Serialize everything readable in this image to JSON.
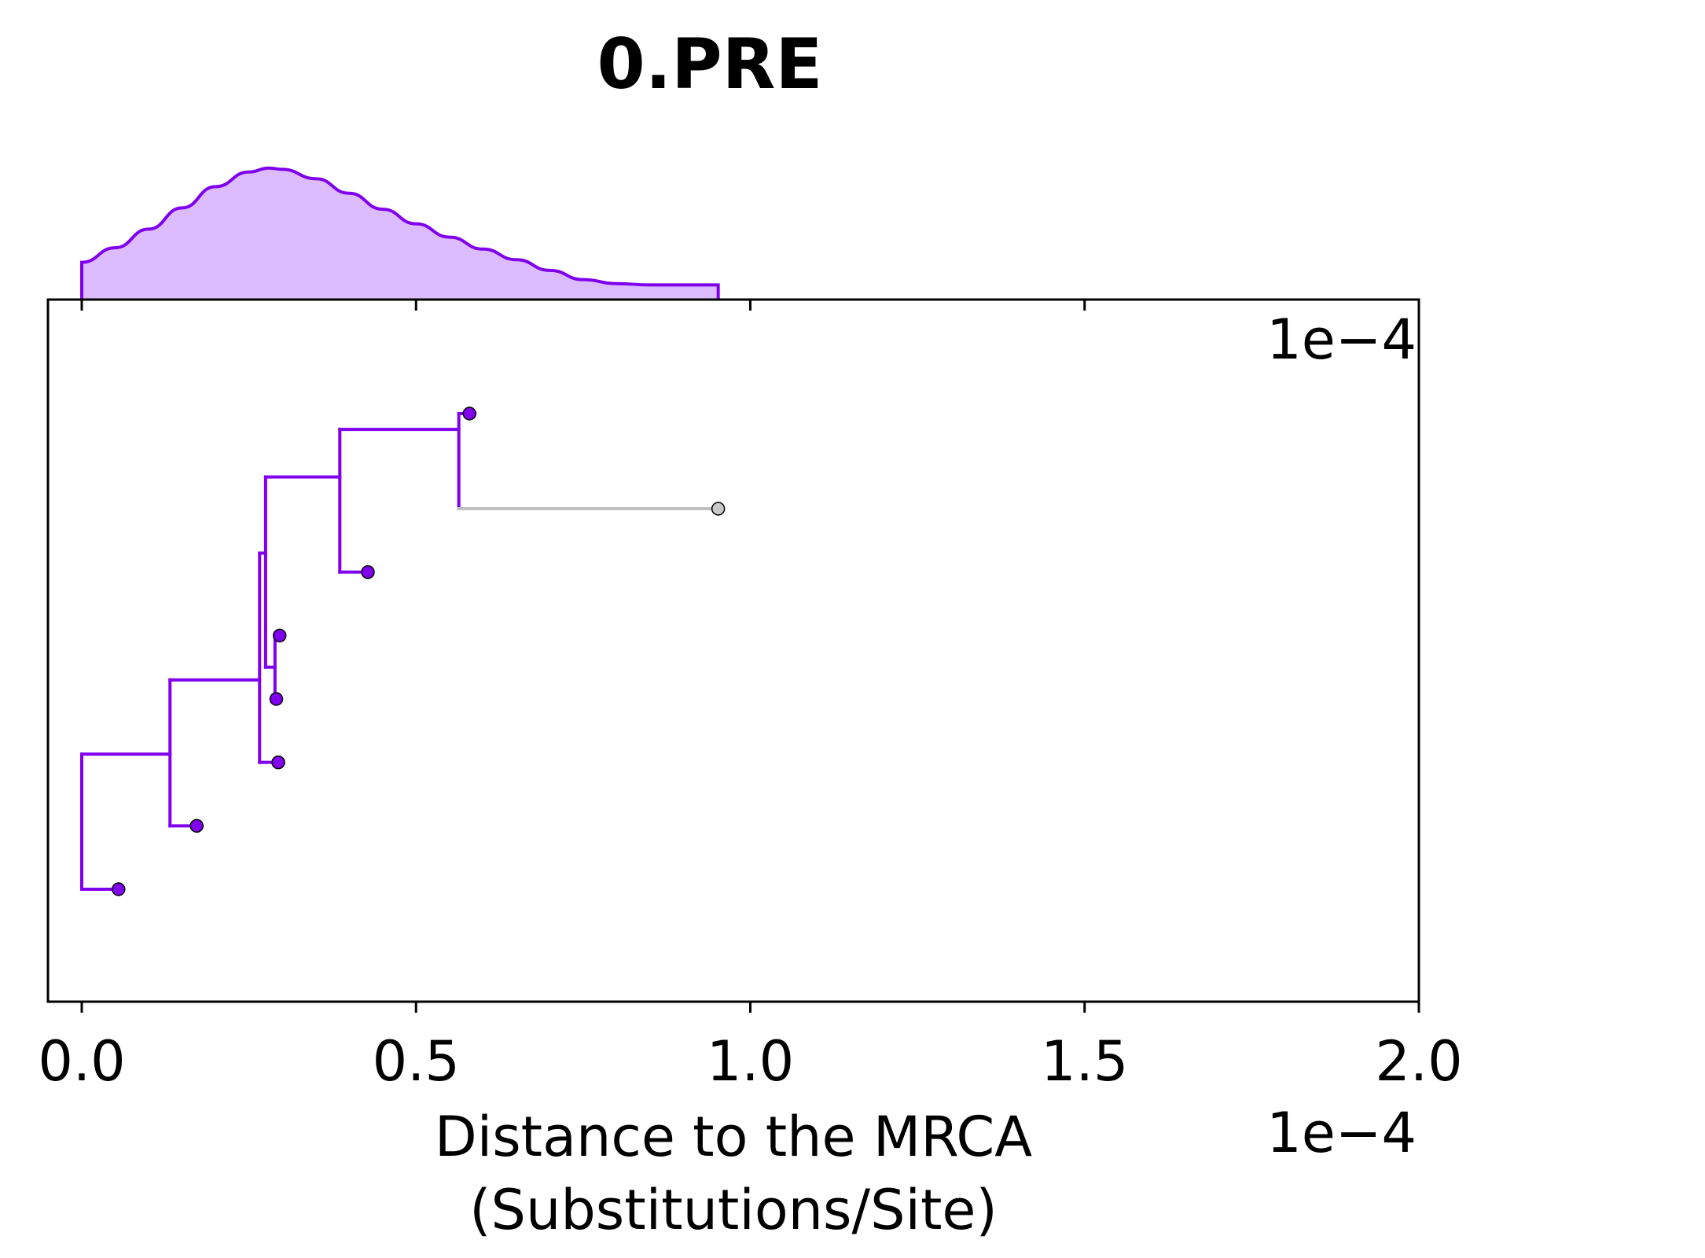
{
  "chart_data": {
    "type": "tree",
    "title": "0.PRE",
    "xlabel_line1": "Distance to the MRCA",
    "xlabel_line2": "(Substitutions/Site)",
    "x_offset_label": "1e−4",
    "y_offset_label": "1e−4",
    "xlim": [
      -0.05,
      2.0
    ],
    "ylim": [
      0,
      10.3
    ],
    "x_ticks": [
      0.0,
      0.5,
      1.0,
      1.5,
      2.0
    ],
    "x_tick_labels": [
      "0.0",
      "0.5",
      "1.0",
      "1.5",
      "2.0"
    ],
    "colors": {
      "branch": "#8000ee",
      "outlier_branch": "#c0c0c0",
      "tip": "#8000ee",
      "outlier_tip": "#c8c8c8",
      "density_fill": "#dcbcff",
      "density_line": "#8000ee"
    },
    "branches": [
      {
        "x0": 0.0,
        "x1": 0.0,
        "y0": 1.0,
        "y1": 3.13
      },
      {
        "x0": 0.0,
        "x1": 0.055,
        "y0": 1.0,
        "y1": 1.0
      },
      {
        "x0": 0.0,
        "x1": 0.132,
        "y0": 3.13,
        "y1": 3.13
      },
      {
        "x0": 0.132,
        "x1": 0.132,
        "y0": 2.0,
        "y1": 4.3
      },
      {
        "x0": 0.132,
        "x1": 0.172,
        "y0": 2.0,
        "y1": 2.0
      },
      {
        "x0": 0.132,
        "x1": 0.266,
        "y0": 4.3,
        "y1": 4.3
      },
      {
        "x0": 0.266,
        "x1": 0.266,
        "y0": 3.0,
        "y1": 6.3
      },
      {
        "x0": 0.266,
        "x1": 0.294,
        "y0": 3.0,
        "y1": 3.0
      },
      {
        "x0": 0.266,
        "x1": 0.275,
        "y0": 6.3,
        "y1": 6.3
      },
      {
        "x0": 0.275,
        "x1": 0.275,
        "y0": 4.5,
        "y1": 7.5
      },
      {
        "x0": 0.275,
        "x1": 0.289,
        "y0": 4.5,
        "y1": 4.5
      },
      {
        "x0": 0.289,
        "x1": 0.289,
        "y0": 4.0,
        "y1": 5.0
      },
      {
        "x0": 0.289,
        "x1": 0.291,
        "y0": 4.0,
        "y1": 4.0
      },
      {
        "x0": 0.289,
        "x1": 0.296,
        "y0": 5.0,
        "y1": 5.0
      },
      {
        "x0": 0.275,
        "x1": 0.386,
        "y0": 7.5,
        "y1": 7.5
      },
      {
        "x0": 0.386,
        "x1": 0.386,
        "y0": 6.0,
        "y1": 8.25
      },
      {
        "x0": 0.386,
        "x1": 0.428,
        "y0": 6.0,
        "y1": 6.0
      },
      {
        "x0": 0.386,
        "x1": 0.564,
        "y0": 8.25,
        "y1": 8.25
      },
      {
        "x0": 0.564,
        "x1": 0.564,
        "y0": 7.0,
        "y1": 8.5
      },
      {
        "x0": 0.564,
        "x1": 0.58,
        "y0": 8.5,
        "y1": 8.5
      },
      {
        "x0": 0.564,
        "x1": 0.952,
        "y0": 7.0,
        "y1": 7.0,
        "outlier": true
      }
    ],
    "tips": [
      {
        "x": 0.055,
        "y": 1.0
      },
      {
        "x": 0.172,
        "y": 2.0
      },
      {
        "x": 0.294,
        "y": 3.0
      },
      {
        "x": 0.291,
        "y": 4.0
      },
      {
        "x": 0.296,
        "y": 5.0
      },
      {
        "x": 0.428,
        "y": 6.0
      },
      {
        "x": 0.952,
        "y": 7.0,
        "outlier": true
      },
      {
        "x": 0.58,
        "y": 8.5
      }
    ],
    "density": {
      "x": [
        0.0,
        0.05,
        0.1,
        0.15,
        0.2,
        0.25,
        0.28,
        0.3,
        0.35,
        0.4,
        0.45,
        0.5,
        0.55,
        0.6,
        0.65,
        0.7,
        0.75,
        0.8,
        0.85,
        0.9,
        0.952
      ],
      "y": [
        0.28,
        0.39,
        0.53,
        0.69,
        0.85,
        0.96,
        0.99,
        0.98,
        0.91,
        0.8,
        0.68,
        0.57,
        0.47,
        0.38,
        0.3,
        0.22,
        0.15,
        0.12,
        0.11,
        0.11,
        0.11
      ]
    }
  }
}
